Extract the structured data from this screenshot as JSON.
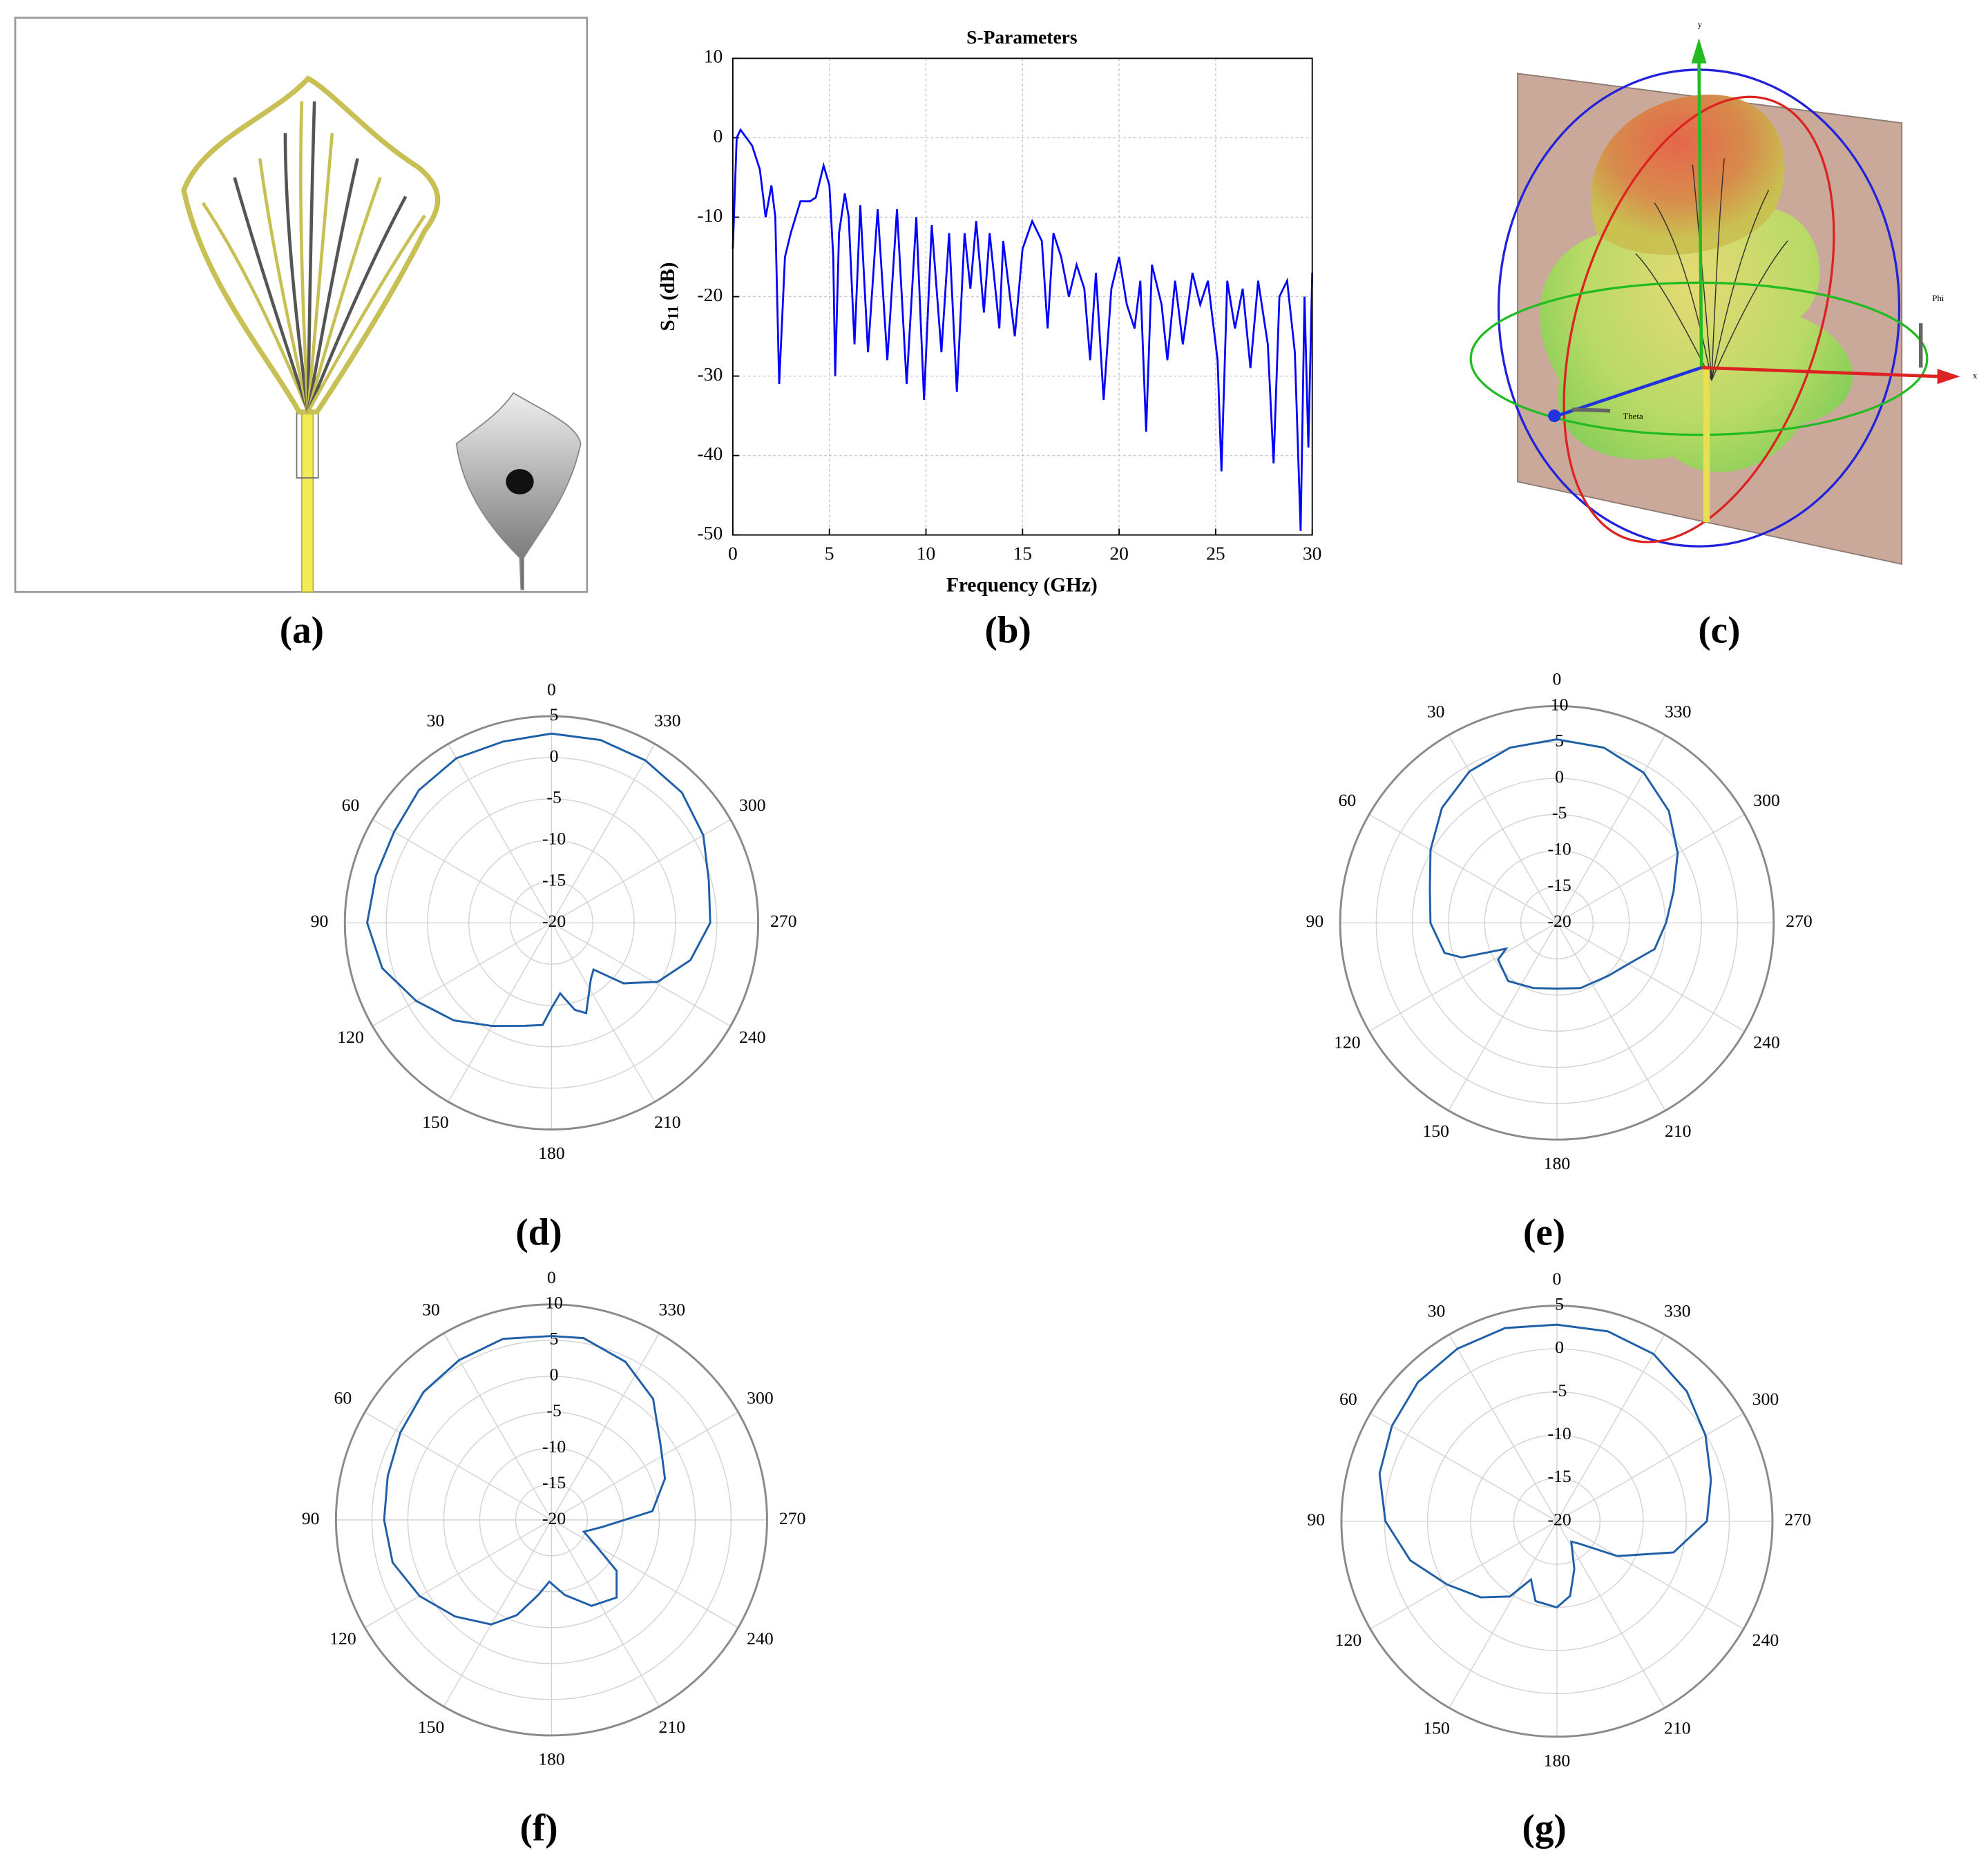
{
  "panel_labels": [
    "(a)",
    "(b)",
    "(c)",
    "(d)",
    "(e)",
    "(f)",
    "(g)"
  ],
  "panel_c": {
    "axis_labels": [
      "y",
      "x",
      "Phi",
      "Theta"
    ]
  },
  "chart_data": [
    {
      "type": "line",
      "title": "S-Parameters",
      "xlabel": "Frequency (GHz)",
      "ylabel": {
        "main": "S",
        "sub": "11",
        "rest": " (dB)"
      },
      "xlim": [
        0,
        30
      ],
      "xticks": [
        0,
        5,
        10,
        15,
        20,
        25,
        30
      ],
      "ylim": [
        -50,
        10
      ],
      "yticks": [
        -50,
        -40,
        -30,
        -20,
        -10,
        0,
        10
      ],
      "grid": true,
      "color": "#0000ff",
      "x": [
        0,
        0.2,
        0.4,
        0.7,
        1.0,
        1.4,
        1.7,
        2.0,
        2.2,
        2.4,
        2.7,
        3.0,
        3.5,
        4.0,
        4.3,
        4.7,
        5.0,
        5.2,
        5.3,
        5.5,
        5.8,
        6.0,
        6.3,
        6.6,
        7.0,
        7.5,
        8.0,
        8.5,
        9.0,
        9.5,
        9.9,
        10.3,
        10.8,
        11.2,
        11.6,
        12.0,
        12.3,
        12.6,
        13.0,
        13.3,
        13.8,
        14.0,
        14.6,
        15.0,
        15.5,
        16.0,
        16.3,
        16.6,
        17.0,
        17.4,
        17.8,
        18.2,
        18.5,
        18.8,
        19.2,
        19.6,
        20.0,
        20.4,
        20.8,
        21.1,
        21.4,
        21.7,
        22.2,
        22.5,
        22.9,
        23.3,
        23.8,
        24.2,
        24.6,
        25.1,
        25.3,
        25.6,
        26.0,
        26.4,
        26.8,
        27.2,
        27.7,
        28.0,
        28.3,
        28.7,
        29.1,
        29.4,
        29.6,
        29.8,
        30
      ],
      "values": [
        -14,
        0,
        1,
        0,
        -1,
        -4,
        -10,
        -6,
        -10,
        -31,
        -15,
        -12,
        -8,
        -8,
        -7.5,
        -3.5,
        -6,
        -15,
        -30,
        -12,
        -7,
        -10,
        -26,
        -8.5,
        -27,
        -9,
        -28,
        -9,
        -31,
        -10,
        -33,
        -11,
        -27,
        -12,
        -32,
        -12,
        -19,
        -10.5,
        -22,
        -12,
        -24,
        -13,
        -25,
        -14,
        -10.5,
        -13,
        -24,
        -12,
        -15,
        -20,
        -16,
        -19,
        -28,
        -17,
        -33,
        -19,
        -15,
        -21,
        -24,
        -18,
        -37,
        -16,
        -21,
        -28,
        -18,
        -26,
        -17,
        -21,
        -18,
        -28,
        -42,
        -18,
        -24,
        -19,
        -29,
        -18,
        -26,
        -41,
        -20,
        -18,
        -27,
        -49.5,
        -20,
        -39,
        -17
      ]
    },
    {
      "type": "polar",
      "zero": "top",
      "direction": "counterclockwise",
      "color": "#1f5fa8",
      "rlim": [
        -20,
        5
      ],
      "rticks": [
        -20,
        -15,
        -10,
        -5,
        0,
        5
      ],
      "thetaticks": [
        0,
        30,
        60,
        90,
        120,
        150,
        180,
        210,
        240,
        270,
        300,
        330
      ],
      "theta": [
        0,
        15,
        30,
        45,
        60,
        75,
        90,
        105,
        120,
        135,
        150,
        165,
        175,
        180,
        187,
        195,
        201,
        215,
        222,
        230,
        241,
        255,
        270,
        285,
        300,
        315,
        330,
        345
      ],
      "values": [
        2.9,
        2.7,
        3.0,
        2.7,
        2.0,
        2.0,
        2.3,
        1.2,
        -1.1,
        -3.3,
        -5.6,
        -7.1,
        -7.6,
        -9.7,
        -11.4,
        -9.1,
        -8.3,
        -11.7,
        -12.4,
        -8.6,
        -5.3,
        -2.6,
        -0.8,
        -0.3,
        1.2,
        2.3,
        2.7,
        2.9
      ]
    },
    {
      "type": "polar",
      "zero": "top",
      "direction": "counterclockwise",
      "color": "#1f5fa8",
      "rlim": [
        -20,
        10
      ],
      "rticks": [
        -20,
        -15,
        -10,
        -5,
        0,
        5,
        10
      ],
      "thetaticks": [
        0,
        30,
        60,
        90,
        120,
        150,
        180,
        210,
        240,
        270,
        300,
        330
      ],
      "theta": [
        0,
        15,
        30,
        45,
        60,
        75,
        90,
        105,
        110,
        117,
        122,
        140,
        160,
        180,
        200,
        224,
        240,
        255,
        270,
        285,
        300,
        315,
        330,
        345
      ],
      "values": [
        5.4,
        5.1,
        4.2,
        2.5,
        0.2,
        -1.8,
        -2.5,
        -3.9,
        -6.0,
        -12.1,
        -10.4,
        -9.5,
        -10.4,
        -10.9,
        -10.4,
        -9.8,
        -8.6,
        -6.0,
        -4.9,
        -3.3,
        -0.7,
        1.9,
        4.0,
        5.1
      ]
    },
    {
      "type": "polar",
      "zero": "top",
      "direction": "counterclockwise",
      "color": "#1f5fa8",
      "rlim": [
        -20,
        10
      ],
      "rticks": [
        -20,
        -15,
        -10,
        -5,
        0,
        5,
        10
      ],
      "thetaticks": [
        0,
        30,
        60,
        90,
        120,
        150,
        180,
        210,
        240,
        270,
        300,
        330
      ],
      "theta": [
        0,
        15,
        30,
        45,
        60,
        75,
        90,
        105,
        120,
        135,
        150,
        160,
        170,
        178,
        190,
        205,
        220,
        232,
        240,
        250,
        262,
        275,
        290,
        305,
        320,
        335,
        350
      ],
      "values": [
        5.6,
        6.1,
        5.7,
        5.2,
        4.3,
        3.6,
        3.3,
        2.9,
        1.2,
        -1.0,
        -3.2,
        -5.9,
        -9.4,
        -11.4,
        -9.4,
        -6.8,
        -5.9,
        -8.5,
        -12.9,
        -15.2,
        -12.9,
        -5.9,
        -3.2,
        -1.5,
        2.0,
        4.3,
        5.7
      ]
    },
    {
      "type": "polar",
      "zero": "top",
      "direction": "counterclockwise",
      "color": "#1f5fa8",
      "rlim": [
        -20,
        5
      ],
      "rticks": [
        -20,
        -15,
        -10,
        -5,
        0,
        5
      ],
      "thetaticks": [
        0,
        30,
        60,
        90,
        120,
        150,
        180,
        210,
        240,
        270,
        300,
        330
      ],
      "theta": [
        0,
        15,
        30,
        45,
        60,
        75,
        90,
        105,
        120,
        135,
        148,
        156,
        165,
        180,
        190,
        200,
        215,
        225,
        240,
        255,
        270,
        285,
        300,
        315,
        330,
        345
      ],
      "values": [
        2.8,
        3.2,
        3.1,
        2.8,
        2.1,
        1.3,
        -0.1,
        -2.4,
        -5.3,
        -7.5,
        -9.7,
        -12.6,
        -10.4,
        -10.0,
        -11.2,
        -14.1,
        -17.1,
        -16.3,
        -11.9,
        -6.0,
        -2.6,
        -1.5,
        -0.1,
        1.3,
        2.4,
        2.8
      ]
    }
  ]
}
